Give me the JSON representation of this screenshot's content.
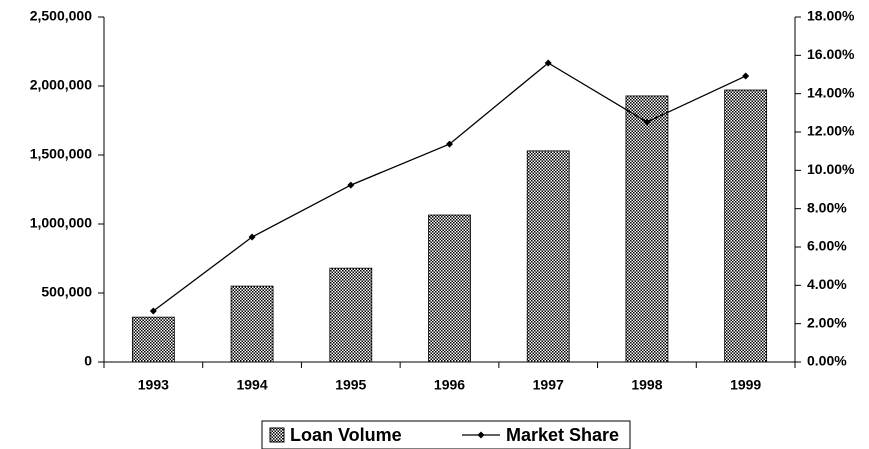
{
  "chart_data": {
    "type": "bar_line",
    "categories": [
      "1993",
      "1994",
      "1995",
      "1996",
      "1997",
      "1998",
      "1999"
    ],
    "series": [
      {
        "name": "Loan Volume",
        "type": "bar",
        "color": "#000000",
        "values": [
          325000,
          550000,
          680000,
          1065000,
          1530000,
          1928000,
          1971000
        ]
      },
      {
        "name": "Market Share",
        "type": "line",
        "axis": "y2",
        "color": "#000000",
        "values": [
          2.66,
          6.52,
          9.23,
          11.37,
          15.6,
          12.52,
          14.92
        ]
      }
    ],
    "ylim": [
      0,
      2500000
    ],
    "yticks": [
      0,
      {
        "value": 500000,
        "label": "500,000"
      },
      {
        "value": 1000000,
        "label": "1,000,000"
      },
      {
        "value": 1500000,
        "label": "1,500,000"
      },
      {
        "value": 2000000,
        "label": "2,000,000"
      },
      {
        "value": 2500000,
        "label": "2,500,000"
      }
    ],
    "y2lim": [
      0,
      18
    ],
    "y2ticks": [
      {
        "value": 0,
        "label": "0.00%"
      },
      {
        "value": 2,
        "label": "2.00%"
      },
      {
        "value": 4,
        "label": "4.00%"
      },
      {
        "value": 6,
        "label": "6.00%"
      },
      {
        "value": 8,
        "label": "8.00%"
      },
      {
        "value": 10,
        "label": "10.00%"
      },
      {
        "value": 12,
        "label": "12.00%"
      },
      {
        "value": 14,
        "label": "14.00%"
      },
      {
        "value": 16,
        "label": "16.00%"
      },
      {
        "value": 18,
        "label": "18.00%"
      }
    ],
    "legend": "bottom"
  }
}
